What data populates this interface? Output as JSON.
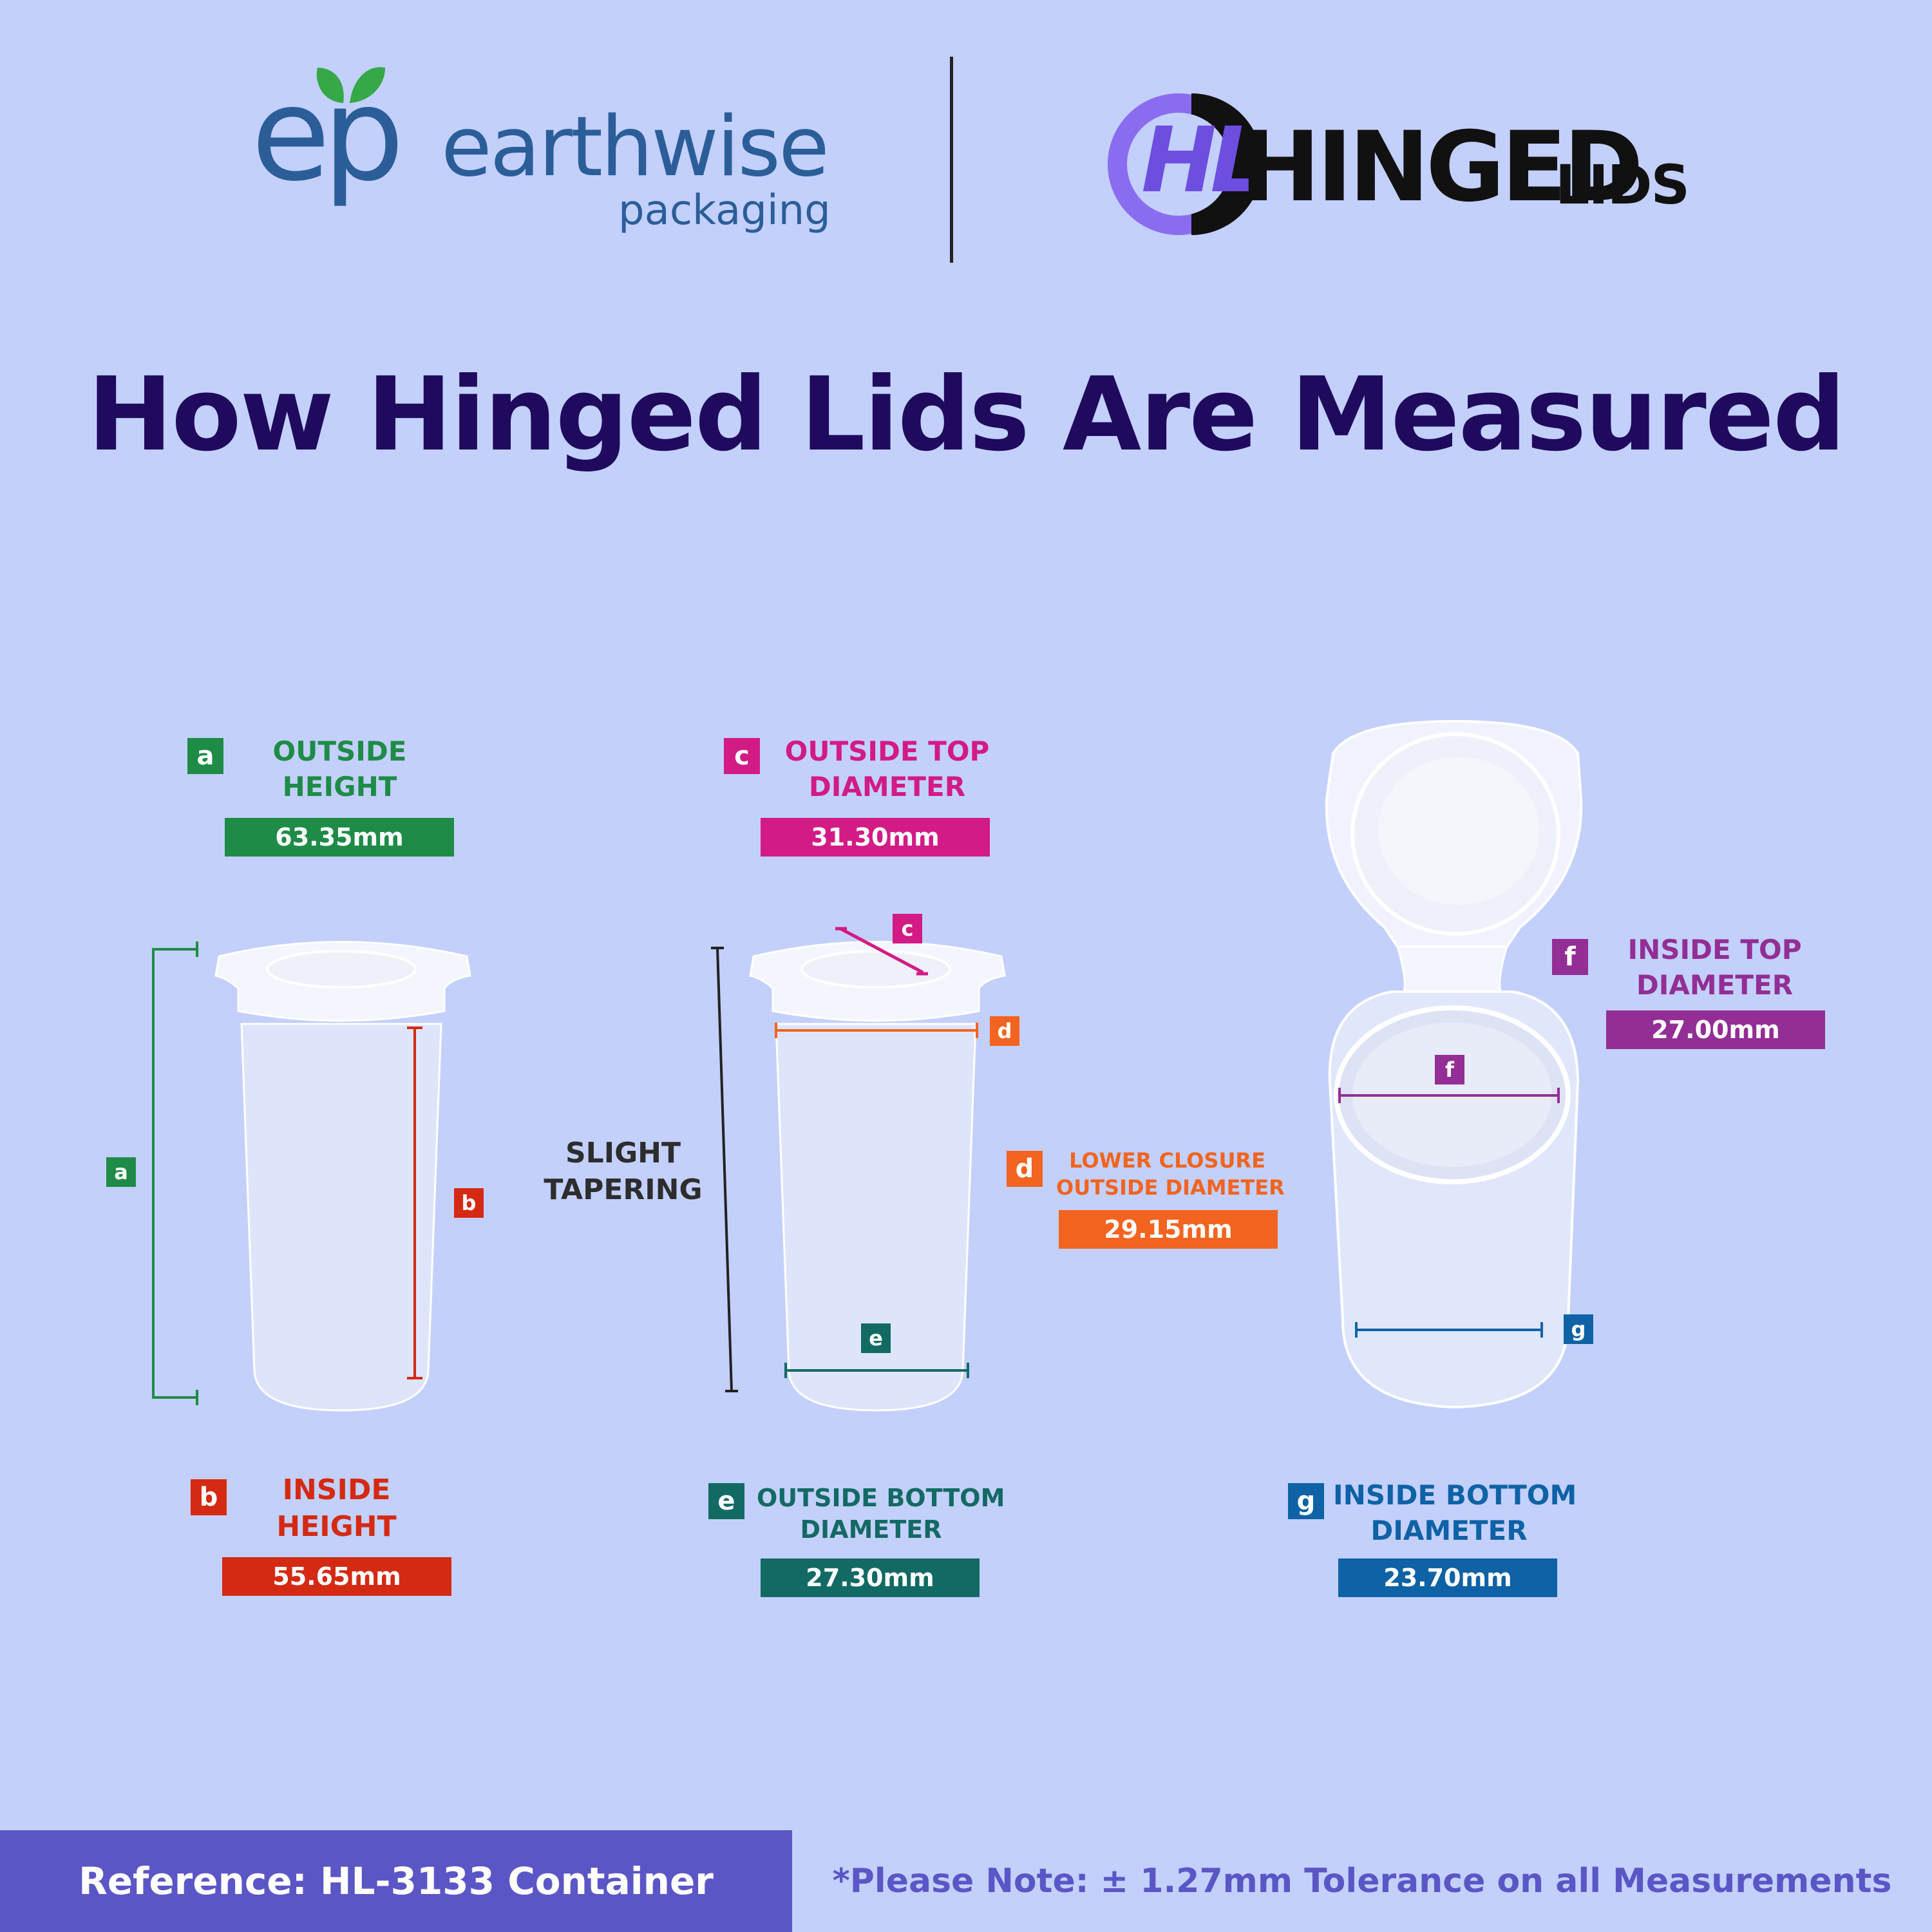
{
  "brand_left": {
    "monogram": "ep",
    "name": "earthwise",
    "sub": "packaging",
    "color": "#2b5e99",
    "leaf_color": "#35a848"
  },
  "brand_right": {
    "monogram": "HL",
    "name": "HINGED",
    "suffix": "LIDS",
    "color": "#8a6cf0"
  },
  "title": "How Hinged Lids Are Measured",
  "side_note": [
    "SLIGHT",
    "TAPERING"
  ],
  "measurements": [
    {
      "key": "a",
      "label_lines": [
        "OUTSIDE",
        "HEIGHT"
      ],
      "value": "63.35mm",
      "color": "#1e8c47"
    },
    {
      "key": "b",
      "label_lines": [
        "INSIDE",
        "HEIGHT"
      ],
      "value": "55.65mm",
      "color": "#d42a13"
    },
    {
      "key": "c",
      "label_lines": [
        "OUTSIDE TOP",
        "DIAMETER"
      ],
      "value": "31.30mm",
      "color": "#d21b84"
    },
    {
      "key": "d",
      "label_lines": [
        "LOWER CLOSURE",
        "OUTSIDE DIAMETER"
      ],
      "value": "29.15mm",
      "color": "#f2641f"
    },
    {
      "key": "e",
      "label_lines": [
        "OUTSIDE BOTTOM",
        "DIAMETER"
      ],
      "value": "27.30mm",
      "color": "#136a64"
    },
    {
      "key": "f",
      "label_lines": [
        "INSIDE TOP",
        "DIAMETER"
      ],
      "value": "27.00mm",
      "color": "#922e95"
    },
    {
      "key": "g",
      "label_lines": [
        "INSIDE BOTTOM",
        "DIAMETER"
      ],
      "value": "23.70mm",
      "color": "#0e62a5"
    }
  ],
  "footer": {
    "reference": "Reference: HL-3133 Container",
    "note": "*Please Note: ± 1.27mm Tolerance on all Measurements"
  }
}
